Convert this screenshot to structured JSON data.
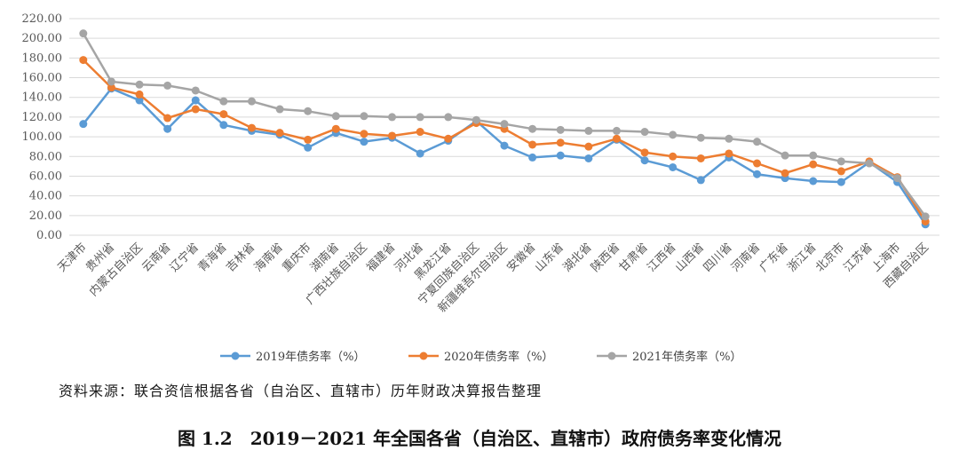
{
  "chart_data": {
    "type": "line",
    "title": "",
    "xlabel": "",
    "ylabel": "",
    "ylim": [
      0,
      220
    ],
    "yticks": [
      "0.00",
      "20.00",
      "40.00",
      "60.00",
      "80.00",
      "100.00",
      "120.00",
      "140.00",
      "160.00",
      "180.00",
      "200.00",
      "220.00"
    ],
    "grid": true,
    "legend_position": "bottom",
    "categories": [
      "天津市",
      "贵州省",
      "内蒙古自治区",
      "云南省",
      "辽宁省",
      "青海省",
      "吉林省",
      "海南省",
      "重庆市",
      "湖南省",
      "广西壮族自治区",
      "福建省",
      "河北省",
      "黑龙江省",
      "宁夏回族自治区",
      "新疆维吾尔自治区",
      "安徽省",
      "山东省",
      "湖北省",
      "陕西省",
      "甘肃省",
      "江西省",
      "山西省",
      "四川省",
      "河南省",
      "广东省",
      "浙江省",
      "北京市",
      "江苏省",
      "上海市",
      "西藏自治区"
    ],
    "series": [
      {
        "name": "2019年债务率（%）",
        "color": "#5b9bd5",
        "values": [
          113,
          149,
          137,
          108,
          137,
          112,
          106,
          102,
          89,
          104,
          95,
          99,
          83,
          96,
          116,
          91,
          79,
          81,
          78,
          97,
          76,
          69,
          56,
          79,
          62,
          58,
          55,
          54,
          74,
          54,
          11
        ]
      },
      {
        "name": "2020年债务率（%）",
        "color": "#ed7d31",
        "values": [
          178,
          150,
          143,
          119,
          128,
          123,
          109,
          104,
          97,
          108,
          103,
          101,
          105,
          98,
          114,
          108,
          92,
          94,
          90,
          98,
          84,
          80,
          78,
          83,
          73,
          63,
          72,
          65,
          75,
          59,
          14
        ]
      },
      {
        "name": "2021年债务率（%）",
        "color": "#a5a5a5",
        "values": [
          205,
          156,
          153,
          152,
          147,
          136,
          136,
          128,
          126,
          121,
          121,
          120,
          120,
          120,
          117,
          113,
          108,
          107,
          106,
          106,
          105,
          102,
          99,
          98,
          95,
          81,
          81,
          75,
          73,
          58,
          19
        ]
      }
    ]
  },
  "source_note": "资料来源：联合资信根据各省（自治区、直辖市）历年财政决算报告整理",
  "caption": "图 1.2　2019－2021 年全国各省（自治区、直辖市）政府债务率变化情况"
}
